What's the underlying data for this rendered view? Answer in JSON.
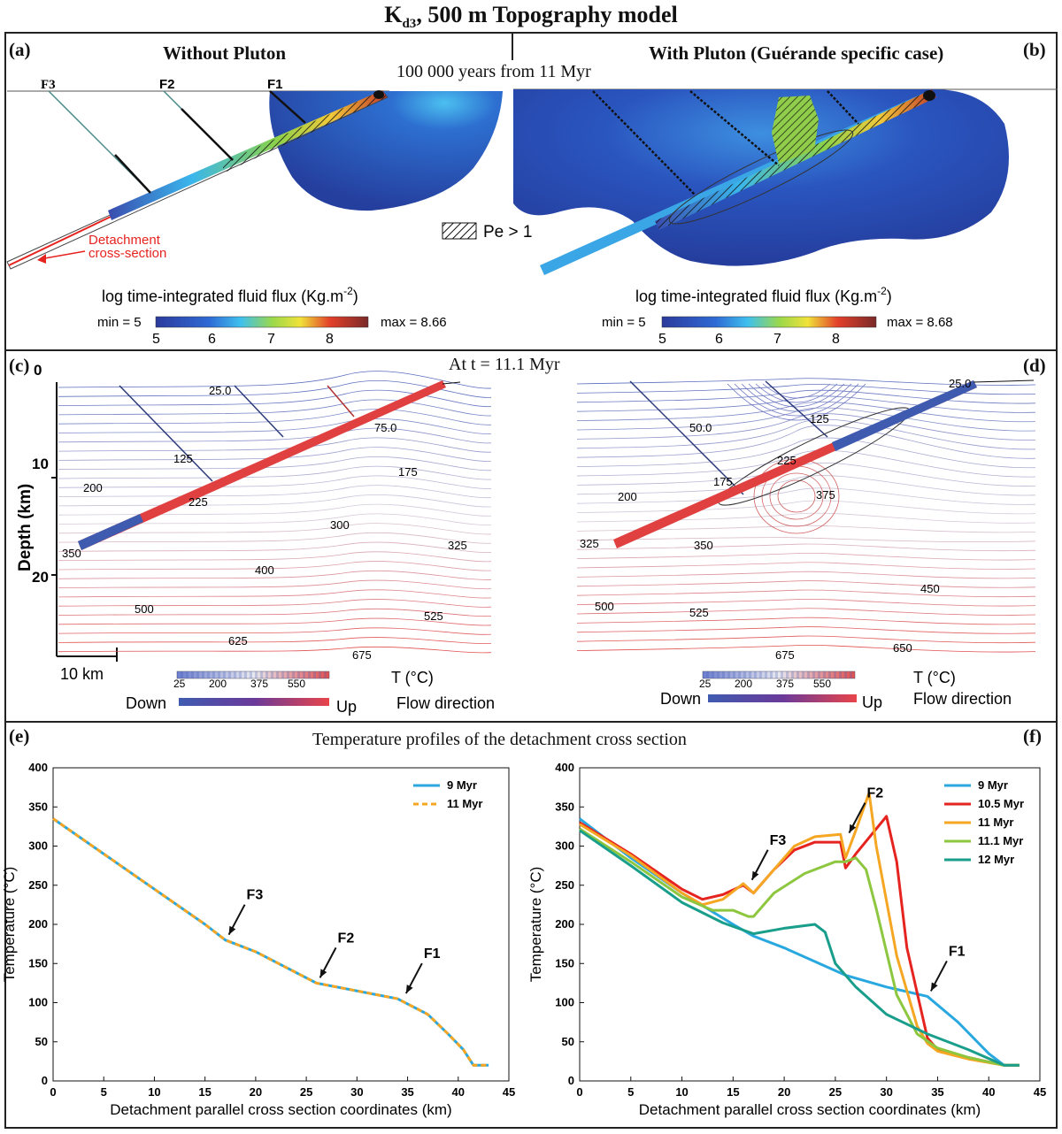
{
  "figure": {
    "title_main": "K",
    "title_sub": "d3",
    "title_rest": ", 500 m Topography model"
  },
  "panel_a": {
    "label": "(a)",
    "heading": "Without Pluton",
    "faults": [
      "F3",
      "F2",
      "F1"
    ],
    "detachment_label_1": "Detachment",
    "detachment_label_2": "cross-section",
    "colorbar_title": "log time-integrated fluid flux (Kg.m",
    "colorbar_exp": "-2",
    "colorbar_close": ")",
    "min_label": "min = 5",
    "max_label": "max = 8.66",
    "ticks": [
      "5",
      "6",
      "7",
      "8"
    ]
  },
  "panel_b": {
    "label": "(b)",
    "heading": "With Pluton (Guérande specific case)",
    "time_note": "100 000 years from 11 Myr",
    "pe_label": "Pe > 1",
    "colorbar_title": "log time-integrated fluid flux (Kg.m",
    "colorbar_exp": "-2",
    "colorbar_close": ")",
    "min_label": "min = 5",
    "max_label": "max = 8.68",
    "ticks": [
      "5",
      "6",
      "7",
      "8"
    ]
  },
  "panel_c": {
    "label": "(c)",
    "time_note": "At t = 11.1 Myr",
    "ylabel": "Depth (km)",
    "yticks": [
      "0",
      "10",
      "20"
    ],
    "scale_label": "10 km",
    "isotherm_labels": [
      "25.0",
      "75.0",
      "125",
      "175",
      "200",
      "225",
      "300",
      "325",
      "350",
      "400",
      "500",
      "525",
      "625",
      "675"
    ],
    "temp_ticks": [
      "25",
      "200",
      "375",
      "550"
    ],
    "temp_label": "T (°C)",
    "flow_down": "Down",
    "flow_up": "Up",
    "flow_label": "Flow direction"
  },
  "panel_d": {
    "label": "(d)",
    "isotherm_labels": [
      "25.0",
      "50.0",
      "125",
      "225",
      "175",
      "200",
      "375",
      "325",
      "350",
      "450",
      "500",
      "525",
      "675",
      "650"
    ],
    "temp_ticks": [
      "25",
      "200",
      "375",
      "550"
    ],
    "temp_label": "T (°C)",
    "flow_down": "Down",
    "flow_up": "Up",
    "flow_label": "Flow direction"
  },
  "panel_e_heading": "Temperature profiles of the detachment cross section",
  "chart_data": [
    {
      "panel": "(e)",
      "type": "line",
      "title": "",
      "xlabel": "Detachment parallel cross section coordinates (km)",
      "ylabel": "Temperature (°C)",
      "xlim": [
        0,
        45
      ],
      "ylim": [
        0,
        400
      ],
      "xticks": [
        0,
        5,
        10,
        15,
        20,
        25,
        30,
        35,
        40,
        45
      ],
      "yticks": [
        0,
        50,
        100,
        150,
        200,
        250,
        300,
        350,
        400
      ],
      "legend_position": "top-right",
      "series": [
        {
          "name": "9 Myr",
          "color": "#29a8e0",
          "style": "solid",
          "x": [
            0,
            5,
            10,
            15,
            17,
            20,
            26,
            30,
            34,
            37,
            39,
            40.5,
            41.5,
            43
          ],
          "y": [
            335,
            290,
            245,
            200,
            180,
            165,
            125,
            115,
            105,
            85,
            60,
            40,
            20,
            20
          ]
        },
        {
          "name": "11 Myr",
          "color": "#f5a623",
          "style": "dashed",
          "x": [
            0,
            5,
            10,
            15,
            17,
            20,
            26,
            30,
            34,
            37,
            39,
            40.5,
            41.5,
            43
          ],
          "y": [
            335,
            290,
            245,
            200,
            180,
            165,
            125,
            115,
            105,
            85,
            60,
            40,
            20,
            20
          ]
        }
      ],
      "annotations": [
        {
          "text": "F3",
          "x": 17,
          "y": 180
        },
        {
          "text": "F2",
          "x": 26,
          "y": 125
        },
        {
          "text": "F1",
          "x": 34.5,
          "y": 105
        }
      ]
    },
    {
      "panel": "(f)",
      "type": "line",
      "title": "",
      "xlabel": "Detachment parallel cross section coordinates (km)",
      "ylabel": "Temperature (°C)",
      "xlim": [
        0,
        45
      ],
      "ylim": [
        0,
        400
      ],
      "xticks": [
        0,
        5,
        10,
        15,
        20,
        25,
        30,
        35,
        40,
        45
      ],
      "yticks": [
        0,
        50,
        100,
        150,
        200,
        250,
        300,
        350,
        400
      ],
      "legend_position": "top-right",
      "series": [
        {
          "name": "9 Myr",
          "color": "#29a8e0",
          "x": [
            0,
            5,
            10,
            15,
            17,
            20,
            26,
            30,
            34,
            37,
            40,
            41.5,
            43
          ],
          "y": [
            335,
            285,
            240,
            200,
            185,
            170,
            135,
            120,
            108,
            75,
            35,
            20,
            20
          ]
        },
        {
          "name": "10.5 Myr",
          "color": "#e52420",
          "x": [
            0,
            5,
            10,
            12,
            14,
            16,
            17,
            19,
            21,
            23,
            25.5,
            26,
            27,
            30,
            31,
            32,
            34,
            35,
            38,
            41.5,
            43
          ],
          "y": [
            330,
            290,
            245,
            232,
            238,
            250,
            240,
            270,
            295,
            305,
            305,
            272,
            290,
            338,
            280,
            170,
            55,
            40,
            30,
            20,
            20
          ]
        },
        {
          "name": "11 Myr",
          "color": "#f5a623",
          "x": [
            0,
            5,
            10,
            12,
            14,
            16,
            17,
            19,
            21,
            23,
            25.5,
            26,
            27,
            28.3,
            29,
            31,
            33,
            34,
            35,
            38,
            41.5,
            43
          ],
          "y": [
            328,
            288,
            240,
            225,
            232,
            252,
            240,
            270,
            300,
            312,
            315,
            285,
            320,
            368,
            300,
            160,
            70,
            48,
            38,
            28,
            20,
            20
          ]
        },
        {
          "name": "11.1 Myr",
          "color": "#8dc63f",
          "x": [
            0,
            5,
            10,
            13,
            15,
            16.5,
            17,
            19,
            22,
            25,
            26,
            27,
            28,
            29,
            31,
            33,
            35,
            38,
            41.5,
            43
          ],
          "y": [
            322,
            280,
            235,
            218,
            218,
            210,
            210,
            240,
            265,
            280,
            280,
            285,
            270,
            220,
            110,
            60,
            42,
            30,
            20,
            20
          ]
        },
        {
          "name": "12 Myr",
          "color": "#1a9e8c",
          "x": [
            0,
            5,
            10,
            14,
            17,
            20,
            23,
            24,
            25,
            27,
            30,
            34,
            38,
            41.5,
            43
          ],
          "y": [
            320,
            275,
            228,
            202,
            188,
            195,
            200,
            190,
            150,
            120,
            85,
            60,
            40,
            20,
            20
          ]
        }
      ],
      "annotations": [
        {
          "text": "F3",
          "x": 16.5,
          "y": 250
        },
        {
          "text": "F2",
          "x": 26,
          "y": 310
        },
        {
          "text": "F1",
          "x": 34,
          "y": 108
        }
      ]
    }
  ]
}
